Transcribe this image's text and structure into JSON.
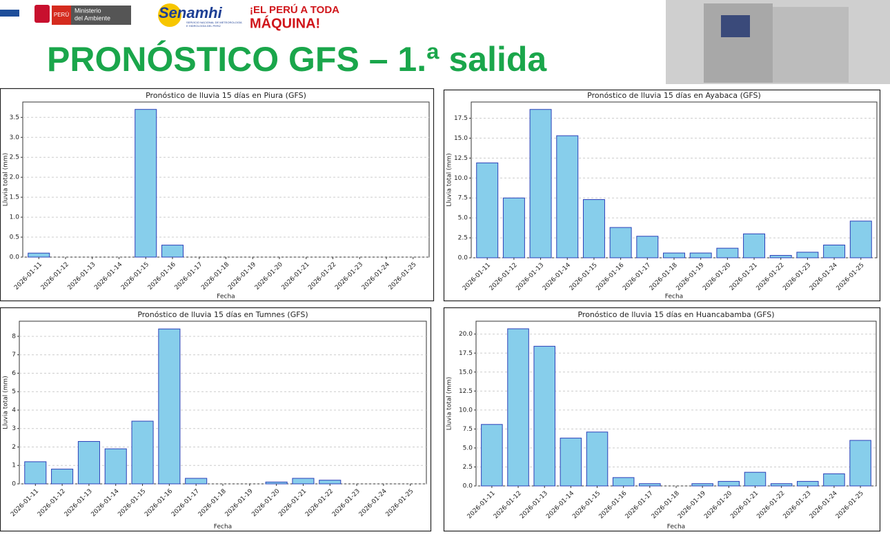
{
  "header": {
    "ministry_badge": "PERÚ",
    "ministry_name": [
      "Ministerio",
      "del Ambiente"
    ],
    "agency": "Senamhi",
    "agency_subtitle": [
      "SERVICIO NACIONAL DE METEOROLOGÍA",
      "E HIDROLOGÍA DEL PERÚ"
    ],
    "slogan": [
      "¡EL PERÚ A TODA",
      "MÁQUINA!"
    ],
    "title": "PRONÓSTICO GFS – 1.ª salida"
  },
  "chart_data": [
    {
      "type": "bar",
      "title": "Pronóstico de lluvia 15 días en Piura (GFS)",
      "xlabel": "Fecha",
      "ylabel": "Lluvia total (mm)",
      "categories": [
        "2026-01-11",
        "2026-01-12",
        "2026-01-13",
        "2026-01-14",
        "2026-01-15",
        "2026-01-16",
        "2026-01-17",
        "2026-01-18",
        "2026-01-19",
        "2026-01-20",
        "2026-01-21",
        "2026-01-22",
        "2026-01-23",
        "2026-01-24",
        "2026-01-25"
      ],
      "values": [
        0.1,
        0,
        0,
        0,
        3.7,
        0.3,
        0,
        0,
        0,
        0,
        0,
        0,
        0,
        0,
        0
      ],
      "color": "#87ceeb",
      "edge_color": "#2b3fb8",
      "ylim": [
        0,
        3.885
      ],
      "yticks": [
        {
          "value": 0,
          "label": "0.0"
        },
        0.5,
        {
          "value": 1,
          "label": "1.0"
        },
        1.5,
        {
          "value": 2,
          "label": "2.0"
        },
        2.5,
        {
          "value": 3,
          "label": "3.0"
        },
        3.5
      ],
      "grid": true
    },
    {
      "type": "bar",
      "title": "Pronóstico de lluvia 15 días en Ayabaca (GFS)",
      "xlabel": "Fecha",
      "ylabel": "Lluvia total (mm)",
      "categories": [
        "2026-01-11",
        "2026-01-12",
        "2026-01-13",
        "2026-01-14",
        "2026-01-15",
        "2026-01-16",
        "2026-01-17",
        "2026-01-18",
        "2026-01-19",
        "2026-01-20",
        "2026-01-21",
        "2026-01-22",
        "2026-01-23",
        "2026-01-24",
        "2026-01-25"
      ],
      "values": [
        11.9,
        7.5,
        18.6,
        15.3,
        7.3,
        3.8,
        2.7,
        0.6,
        0.6,
        1.2,
        3.0,
        0.3,
        0.7,
        1.6,
        4.6
      ],
      "color": "#87ceeb",
      "edge_color": "#2b3fb8",
      "ylim": [
        0,
        19.53
      ],
      "yticks": [
        {
          "value": 0,
          "label": "0.0"
        },
        2.5,
        {
          "value": 5,
          "label": "5.0"
        },
        7.5,
        {
          "value": 10,
          "label": "10.0"
        },
        12.5,
        {
          "value": 15,
          "label": "15.0"
        },
        17.5
      ],
      "grid": true
    },
    {
      "type": "bar",
      "title": "Pronóstico de lluvia 15 días en Tumnes (GFS)",
      "xlabel": "Fecha",
      "ylabel": "Lluvia total (mm)",
      "categories": [
        "2026-01-11",
        "2026-01-12",
        "2026-01-13",
        "2026-01-14",
        "2026-01-15",
        "2026-01-16",
        "2026-01-17",
        "2026-01-18",
        "2026-01-19",
        "2026-01-20",
        "2026-01-21",
        "2026-01-22",
        "2026-01-23",
        "2026-01-24",
        "2026-01-25"
      ],
      "values": [
        1.2,
        0.8,
        2.3,
        1.9,
        3.4,
        8.4,
        0.3,
        0,
        0,
        0.1,
        0.3,
        0.2,
        0,
        0,
        0
      ],
      "color": "#87ceeb",
      "edge_color": "#2b3fb8",
      "ylim": [
        0,
        8.82
      ],
      "yticks": [
        0,
        1,
        2,
        3,
        4,
        5,
        6,
        7,
        8
      ],
      "grid": true
    },
    {
      "type": "bar",
      "title": "Pronóstico de lluvia 15 días en Huancabamba (GFS)",
      "xlabel": "Fecha",
      "ylabel": "Lluvia total (mm)",
      "categories": [
        "2026-01-11",
        "2026-01-12",
        "2026-01-13",
        "2026-01-14",
        "2026-01-15",
        "2026-01-16",
        "2026-01-17",
        "2026-01-18",
        "2026-01-19",
        "2026-01-20",
        "2026-01-21",
        "2026-01-22",
        "2026-01-23",
        "2026-01-24",
        "2026-01-25"
      ],
      "values": [
        8.1,
        20.7,
        18.4,
        6.3,
        7.1,
        1.1,
        0.3,
        0,
        0.3,
        0.6,
        1.8,
        0.3,
        0.6,
        1.6,
        6.0
      ],
      "color": "#87ceeb",
      "edge_color": "#2b3fb8",
      "ylim": [
        0,
        21.7
      ],
      "yticks": [
        {
          "value": 0,
          "label": "0.0"
        },
        2.5,
        {
          "value": 5,
          "label": "5.0"
        },
        7.5,
        {
          "value": 10,
          "label": "10.0"
        },
        12.5,
        {
          "value": 15,
          "label": "15.0"
        },
        17.5,
        {
          "value": 20,
          "label": "20.0"
        }
      ],
      "grid": true
    }
  ]
}
